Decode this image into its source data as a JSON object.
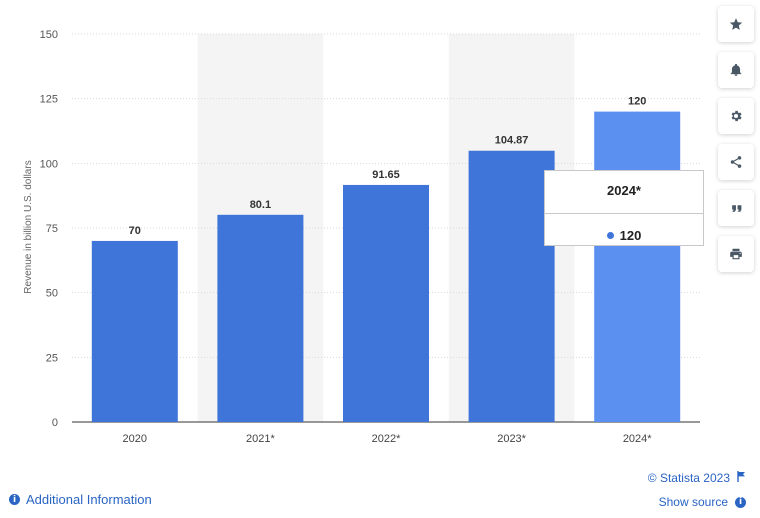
{
  "chart_data": {
    "type": "bar",
    "categories": [
      "2020",
      "2021*",
      "2022*",
      "2023*",
      "2024*"
    ],
    "values": [
      70,
      80.1,
      91.65,
      104.87,
      120
    ],
    "value_labels": [
      "70",
      "80.1",
      "91.65",
      "104.87",
      "120"
    ],
    "ylabel": "Revenue in billion U.S. dollars",
    "ylim": [
      0,
      150
    ],
    "yticks": [
      0,
      25,
      50,
      75,
      100,
      125,
      150
    ],
    "grid": true,
    "highlighted_category": "2024*"
  },
  "colors": {
    "bar": "#3f74d8",
    "bar_highlight": "#5b8ff0",
    "band": "#f4f4f4",
    "link": "#2a64c4"
  },
  "tooltip": {
    "title": "2024*",
    "value": "120"
  },
  "toolbar": {
    "icons": [
      "star-icon",
      "bell-icon",
      "gear-icon",
      "share-icon",
      "quote-icon",
      "print-icon"
    ]
  },
  "footer": {
    "additional_info": "Additional Information",
    "copyright": "© Statista 2023",
    "show_source": "Show source"
  }
}
